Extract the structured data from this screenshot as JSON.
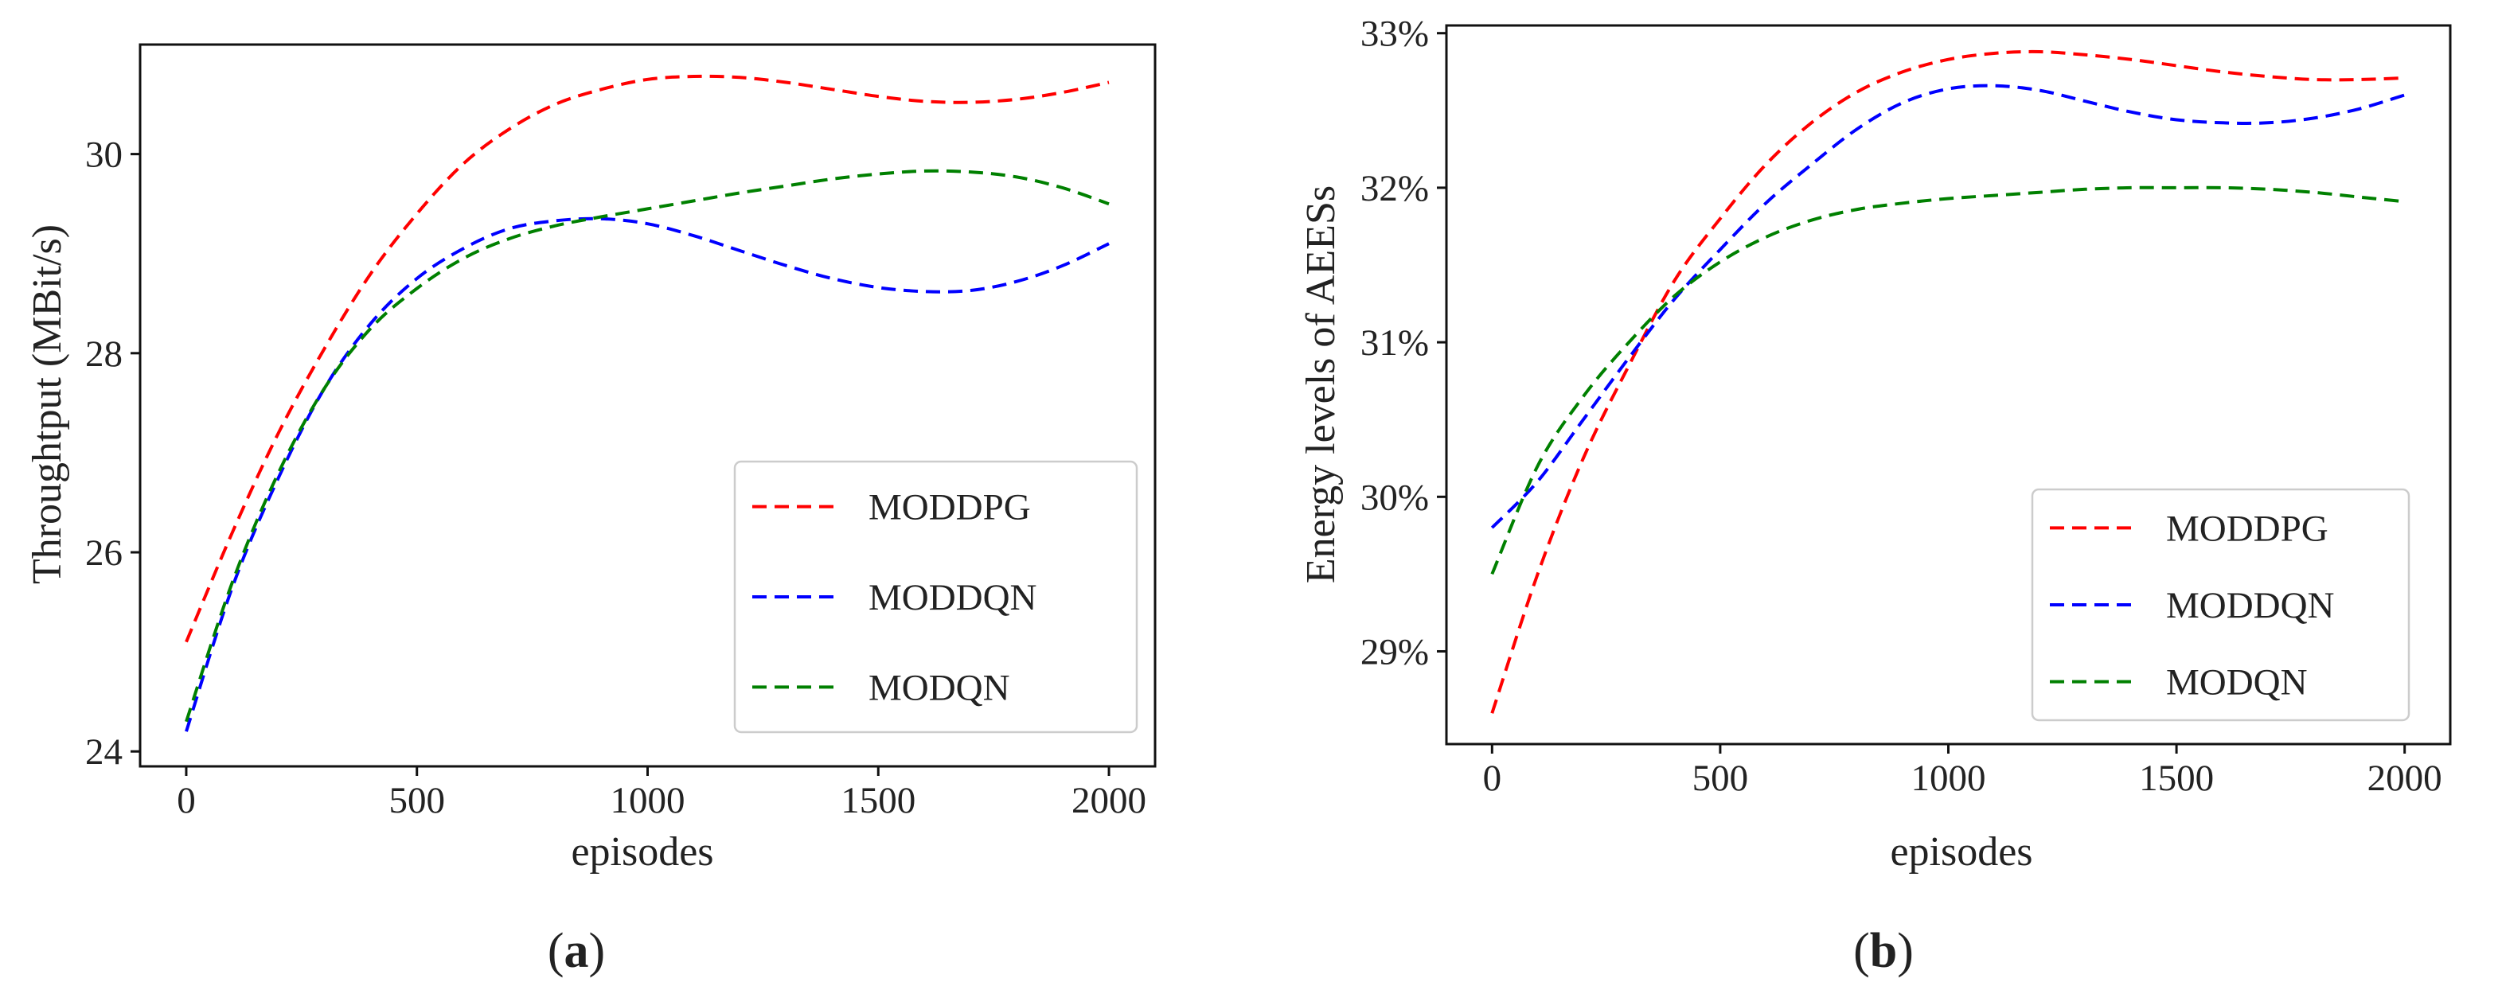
{
  "chart_data": [
    {
      "type": "line",
      "panel_label": "a",
      "title": "",
      "xlabel": "episodes",
      "ylabel": "Throughtput (MBit/s)",
      "xlim": [
        -100,
        2100
      ],
      "ylim": [
        23.85,
        31.1
      ],
      "xticks": [
        0,
        500,
        1000,
        1500,
        2000
      ],
      "xtick_labels": [
        "0",
        "500",
        "1000",
        "1500",
        "2000"
      ],
      "yticks": [
        24,
        26,
        28,
        30
      ],
      "ytick_labels": [
        "24",
        "26",
        "28",
        "30"
      ],
      "grid": false,
      "legend_position": "lower-right",
      "series": [
        {
          "name": "MODDPG",
          "color": "#ff0000",
          "x": [
            0,
            100,
            200,
            300,
            400,
            500,
            600,
            700,
            800,
            900,
            1000,
            1100,
            1200,
            1300,
            1400,
            1500,
            1600,
            1700,
            1800,
            1900,
            2000
          ],
          "y": [
            25.1,
            26.2,
            27.2,
            28.05,
            28.8,
            29.4,
            29.9,
            30.25,
            30.5,
            30.65,
            30.75,
            30.78,
            30.77,
            30.72,
            30.65,
            30.58,
            30.53,
            30.52,
            30.55,
            30.62,
            30.72
          ]
        },
        {
          "name": "MODDQN",
          "color": "#0000ff",
          "x": [
            0,
            100,
            200,
            300,
            400,
            500,
            600,
            700,
            800,
            900,
            1000,
            1100,
            1200,
            1300,
            1400,
            1500,
            1600,
            1700,
            1800,
            1900,
            2000
          ],
          "y": [
            24.2,
            25.65,
            26.75,
            27.65,
            28.3,
            28.75,
            29.05,
            29.25,
            29.33,
            29.35,
            29.3,
            29.18,
            29.03,
            28.88,
            28.75,
            28.66,
            28.62,
            28.63,
            28.72,
            28.88,
            29.1
          ]
        },
        {
          "name": "MODQN",
          "color": "#008000",
          "x": [
            0,
            100,
            200,
            300,
            400,
            500,
            600,
            700,
            800,
            900,
            1000,
            1100,
            1200,
            1300,
            1400,
            1500,
            1600,
            1700,
            1800,
            1900,
            2000
          ],
          "y": [
            24.3,
            25.7,
            26.8,
            27.65,
            28.25,
            28.65,
            28.95,
            29.15,
            29.28,
            29.37,
            29.45,
            29.53,
            29.61,
            29.68,
            29.75,
            29.8,
            29.83,
            29.82,
            29.77,
            29.66,
            29.5
          ]
        }
      ]
    },
    {
      "type": "line",
      "panel_label": "b",
      "title": "",
      "xlabel": "episodes",
      "ylabel": "Energy levels of AEESs",
      "xlim": [
        -100,
        2100
      ],
      "ylim": [
        28.4,
        33.05
      ],
      "xticks": [
        0,
        500,
        1000,
        1500,
        2000
      ],
      "xtick_labels": [
        "0",
        "500",
        "1000",
        "1500",
        "2000"
      ],
      "yticks": [
        29,
        30,
        31,
        32,
        33
      ],
      "ytick_labels": [
        "29%",
        "30%",
        "31%",
        "32%",
        "33%"
      ],
      "grid": false,
      "legend_position": "lower-right",
      "series": [
        {
          "name": "MODDPG",
          "color": "#ff0000",
          "x": [
            0,
            100,
            200,
            300,
            400,
            500,
            600,
            700,
            800,
            900,
            1000,
            1100,
            1200,
            1300,
            1400,
            1500,
            1600,
            1700,
            1800,
            1900,
            2000
          ],
          "y": [
            28.6,
            29.5,
            30.25,
            30.85,
            31.4,
            31.8,
            32.15,
            32.42,
            32.62,
            32.75,
            32.83,
            32.87,
            32.88,
            32.86,
            32.83,
            32.79,
            32.75,
            32.72,
            32.7,
            32.7,
            32.71
          ]
        },
        {
          "name": "MODDQN",
          "color": "#0000ff",
          "x": [
            0,
            100,
            200,
            300,
            400,
            500,
            600,
            700,
            800,
            900,
            1000,
            1100,
            1200,
            1300,
            1400,
            1500,
            1600,
            1700,
            1800,
            1900,
            2000
          ],
          "y": [
            29.8,
            30.1,
            30.5,
            30.9,
            31.28,
            31.6,
            31.9,
            32.15,
            32.38,
            32.55,
            32.64,
            32.66,
            32.63,
            32.56,
            32.49,
            32.44,
            32.42,
            32.42,
            32.45,
            32.51,
            32.6
          ]
        },
        {
          "name": "MODQN",
          "color": "#008000",
          "x": [
            0,
            100,
            200,
            300,
            400,
            500,
            600,
            700,
            800,
            900,
            1000,
            1100,
            1200,
            1300,
            1400,
            1500,
            1600,
            1700,
            1800,
            1900,
            2000
          ],
          "y": [
            29.5,
            30.2,
            30.65,
            31.0,
            31.3,
            31.52,
            31.68,
            31.79,
            31.86,
            31.9,
            31.93,
            31.95,
            31.97,
            31.99,
            32.0,
            32.0,
            32.0,
            31.99,
            31.97,
            31.94,
            31.91
          ]
        }
      ]
    }
  ]
}
